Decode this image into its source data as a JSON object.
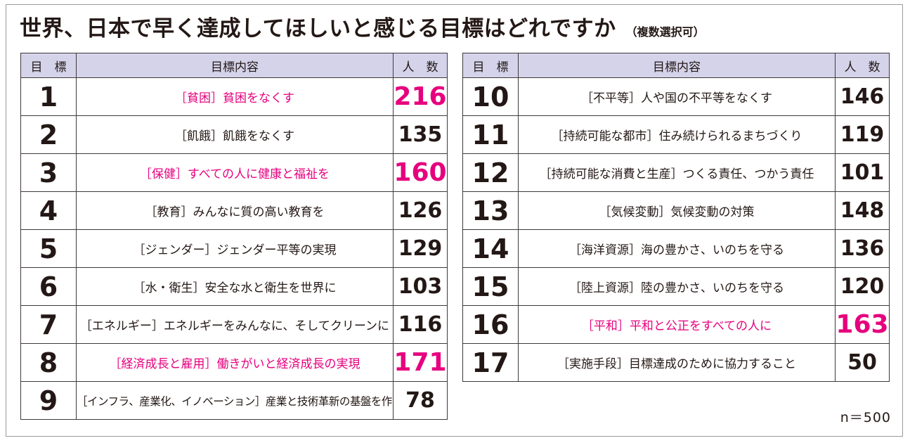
{
  "title": "世界、日本で早く達成してほしいと感じる目標はどれですか",
  "subtitle": "（複数選択可）",
  "highlight_color": "#e6007e",
  "header_color": "#d4d3ea",
  "headers": {
    "goal": "目　標",
    "content": "目標内容",
    "count": "人　数"
  },
  "left_rows": [
    {
      "num": "1",
      "content": "［貧困］貧困をなくす",
      "count": "216",
      "highlight": true
    },
    {
      "num": "2",
      "content": "［飢餓］飢餓をなくす",
      "count": "135",
      "highlight": false
    },
    {
      "num": "3",
      "content": "［保健］すべての人に健康と福祉を",
      "count": "160",
      "highlight": true
    },
    {
      "num": "4",
      "content": "［教育］みんなに質の高い教育を",
      "count": "126",
      "highlight": false
    },
    {
      "num": "5",
      "content": "［ジェンダー］ジェンダー平等の実現",
      "count": "129",
      "highlight": false
    },
    {
      "num": "6",
      "content": "［水・衛生］安全な水と衛生を世界に",
      "count": "103",
      "highlight": false
    },
    {
      "num": "7",
      "content": "［エネルギー］エネルギーをみんなに、そしてクリーンに",
      "count": "116",
      "highlight": false
    },
    {
      "num": "8",
      "content": "［経済成長と雇用］働きがいと経済成長の実現",
      "count": "171",
      "highlight": true
    },
    {
      "num": "9",
      "content": "［インフラ、産業化、イノベーション］産業と技術革新の基盤を作る",
      "count": "78",
      "highlight": false
    }
  ],
  "right_rows": [
    {
      "num": "10",
      "content": "［不平等］人や国の不平等をなくす",
      "count": "146",
      "highlight": false
    },
    {
      "num": "11",
      "content": "［持続可能な都市］住み続けられるまちづくり",
      "count": "119",
      "highlight": false
    },
    {
      "num": "12",
      "content": "［持続可能な消費と生産］つくる責任、つかう責任",
      "count": "101",
      "highlight": false
    },
    {
      "num": "13",
      "content": "［気候変動］気候変動の対策",
      "count": "148",
      "highlight": false
    },
    {
      "num": "14",
      "content": "［海洋資源］海の豊かさ、いのちを守る",
      "count": "136",
      "highlight": false
    },
    {
      "num": "15",
      "content": "［陸上資源］陸の豊かさ、いのちを守る",
      "count": "120",
      "highlight": false
    },
    {
      "num": "16",
      "content": "［平和］平和と公正をすべての人に",
      "count": "163",
      "highlight": true
    },
    {
      "num": "17",
      "content": "［実施手段］目標達成のために協力すること",
      "count": "50",
      "highlight": false
    }
  ],
  "sample_note": "n＝500"
}
